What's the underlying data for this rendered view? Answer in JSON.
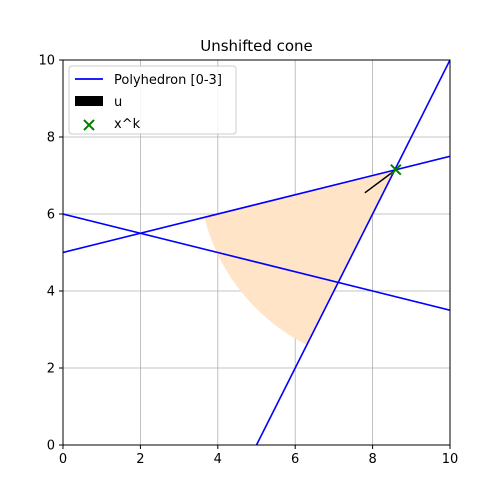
{
  "chart_data": {
    "type": "line",
    "title": "Unshifted cone",
    "xlabel": "",
    "ylabel": "",
    "xlim": [
      0,
      10
    ],
    "ylim": [
      0,
      10
    ],
    "xticks": [
      0,
      2,
      4,
      6,
      8,
      10
    ],
    "yticks": [
      0,
      2,
      4,
      6,
      8,
      10
    ],
    "grid": true,
    "legend_position": "top-left",
    "lines": [
      {
        "name": "Polyhedron [0-3]",
        "color": "#0000ff",
        "x": [
          0,
          10
        ],
        "y": [
          6.0,
          3.5
        ]
      },
      {
        "color": "#0000ff",
        "x": [
          0,
          10
        ],
        "y": [
          5.0,
          7.5
        ]
      },
      {
        "color": "#0000ff",
        "x": [
          5,
          10
        ],
        "y": [
          0,
          10
        ]
      }
    ],
    "cone_region": {
      "color": "#ffe4c8",
      "apex": [
        8.6,
        7.15
      ],
      "radius": 5.1,
      "edge_directions": [
        [
          -1,
          -0.25
        ],
        [
          -1,
          -2
        ]
      ]
    },
    "arrow": {
      "name": "u",
      "color": "#000000",
      "start": [
        8.6,
        7.15
      ],
      "end": [
        7.8,
        6.55
      ]
    },
    "point": {
      "name": "x^k",
      "color": "#008000",
      "marker": "x",
      "x": 8.6,
      "y": 7.15
    },
    "legend": [
      {
        "label": "Polyhedron [0-3]",
        "kind": "line",
        "color": "#0000ff"
      },
      {
        "label": "u",
        "kind": "patch",
        "color": "#000000"
      },
      {
        "label": "x^k",
        "kind": "x-marker",
        "color": "#008000"
      }
    ]
  }
}
